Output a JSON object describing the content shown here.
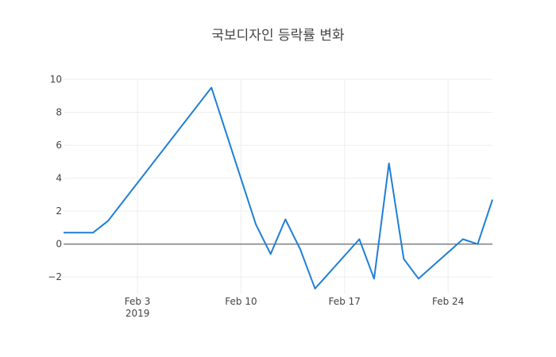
{
  "chart_data": {
    "type": "line",
    "title": "국보디자인 등락률 변화",
    "xlabel": "",
    "ylabel": "",
    "x_range": [
      "2019-01-29",
      "2019-02-27"
    ],
    "y_range": [
      -3,
      10
    ],
    "y_ticks": [
      -2,
      0,
      2,
      4,
      6,
      8,
      10
    ],
    "y_tick_labels": [
      "−2",
      "0",
      "2",
      "4",
      "6",
      "8",
      "10"
    ],
    "x_ticks": [
      {
        "date": "2019-02-03",
        "label": "Feb 3",
        "sublabel": "2019"
      },
      {
        "date": "2019-02-10",
        "label": "Feb 10",
        "sublabel": ""
      },
      {
        "date": "2019-02-17",
        "label": "Feb 17",
        "sublabel": ""
      },
      {
        "date": "2019-02-24",
        "label": "Feb 24",
        "sublabel": ""
      }
    ],
    "grid": true,
    "zero_line": true,
    "series": [
      {
        "color": "#1f7fd6",
        "x": [
          "2019-01-29",
          "2019-01-30",
          "2019-01-31",
          "2019-02-01",
          "2019-02-08",
          "2019-02-11",
          "2019-02-12",
          "2019-02-13",
          "2019-02-14",
          "2019-02-15",
          "2019-02-18",
          "2019-02-19",
          "2019-02-20",
          "2019-02-21",
          "2019-02-22",
          "2019-02-25",
          "2019-02-26",
          "2019-02-27"
        ],
        "y": [
          0.7,
          0.7,
          0.7,
          1.4,
          9.5,
          1.2,
          -0.6,
          1.5,
          -0.3,
          -2.7,
          0.3,
          -2.1,
          4.9,
          -0.9,
          -2.1,
          0.3,
          0.0,
          2.7
        ]
      }
    ]
  }
}
